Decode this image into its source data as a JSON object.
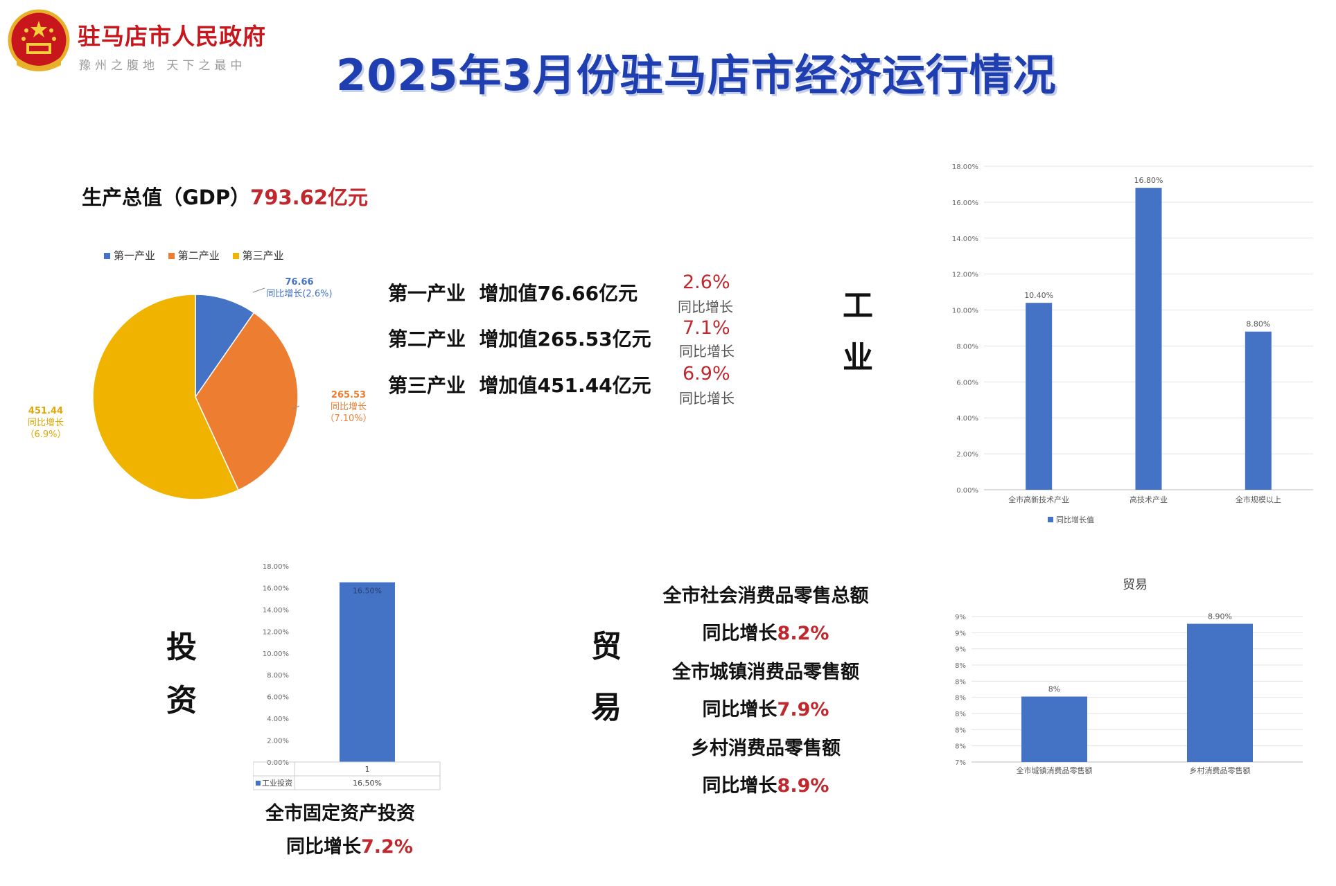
{
  "header": {
    "gov_name": "驻马店市人民政府",
    "gov_slogan": "豫州之腹地 天下之最中",
    "title": "2025年3月份驻马店市经济运行情况"
  },
  "gdp": {
    "label": "生产总值（GDP）",
    "value": "793.62亿元"
  },
  "industries": [
    {
      "name": "第一产业",
      "added": "增加值76.66亿元",
      "pct": "2.6%",
      "note": "同比增长"
    },
    {
      "name": "第二产业",
      "added": "增加值265.53亿元",
      "pct": "7.1%",
      "note": "同比增长"
    },
    {
      "name": "第三产业",
      "added": "增加值451.44亿元",
      "pct": "6.9%",
      "note": "同比增长"
    }
  ],
  "pie_labels": [
    {
      "value": "76.66",
      "growth": "同比增长(2.6%)"
    },
    {
      "value": "265.53",
      "growth": "同比增长",
      "growth2": "（7.10%）"
    },
    {
      "value": "451.44",
      "growth": "同比增长",
      "growth2": "（6.9%）"
    }
  ],
  "side_labels": {
    "industry": [
      "工",
      "业"
    ],
    "investment": [
      "投",
      "资"
    ],
    "trade": [
      "贸",
      "易"
    ]
  },
  "investment_text": {
    "line1": "全市固定资产投资",
    "line2_prefix": "同比增长",
    "line2_value": "7.2%"
  },
  "trade_text": [
    {
      "line": "全市社会消费品零售总额",
      "prefix": "同比增长",
      "value": "8.2%"
    },
    {
      "line": "全市城镇消费品零售额",
      "prefix": "同比增长",
      "value": "7.9%"
    },
    {
      "line": "乡村消费品零售额",
      "prefix": "同比增长",
      "value": "8.9%"
    }
  ],
  "colors": {
    "primary": "#4472c4",
    "secondary": "#ed7d31",
    "tertiary": "#f0b400",
    "accent_red": "#c0282d",
    "title_blue": "#1f3fb0"
  },
  "chart_data": [
    {
      "id": "gdp-pie",
      "type": "pie",
      "title": "",
      "categories": [
        "第一产业",
        "第二产业",
        "第三产业"
      ],
      "values": [
        76.66,
        265.53,
        451.44
      ],
      "colors": [
        "#4472c4",
        "#ed7d31",
        "#f0b400"
      ],
      "legend": "top"
    },
    {
      "id": "industry-bar",
      "type": "bar",
      "title": "",
      "categories": [
        "全市高新技术产业",
        "高技术产业",
        "全市规模以上"
      ],
      "values": [
        10.4,
        16.8,
        8.8
      ],
      "value_labels": [
        "10.40%",
        "16.80%",
        "8.80%"
      ],
      "ylim": [
        0,
        18
      ],
      "yticks": [
        "0.00%",
        "2.00%",
        "4.00%",
        "6.00%",
        "8.00%",
        "10.00%",
        "12.00%",
        "14.00%",
        "16.00%",
        "18.00%"
      ],
      "series_name": "同比增长值",
      "grid": true,
      "legend": "bottom"
    },
    {
      "id": "investment-bar",
      "type": "bar",
      "title": "",
      "categories": [
        "1"
      ],
      "values": [
        16.5
      ],
      "value_labels": [
        "16.50%"
      ],
      "ylim": [
        0,
        18
      ],
      "yticks": [
        "0.00%",
        "2.00%",
        "4.00%",
        "6.00%",
        "8.00%",
        "10.00%",
        "12.00%",
        "14.00%",
        "16.00%",
        "18.00%"
      ],
      "series_name": "工业投资",
      "table_value": "16.50%",
      "grid": false,
      "legend": "data-table"
    },
    {
      "id": "trade-bar",
      "type": "bar",
      "title": "贸易",
      "categories": [
        "全市城镇消费品零售额",
        "乡村消费品零售额"
      ],
      "values": [
        7.9,
        8.9
      ],
      "value_labels": [
        "8%",
        "8.90%"
      ],
      "ylim": [
        7,
        9
      ],
      "yticks": [
        "7%",
        "8%",
        "8%",
        "8%",
        "8%",
        "8%",
        "8%",
        "9%",
        "9%",
        "9%"
      ],
      "grid": true
    }
  ]
}
